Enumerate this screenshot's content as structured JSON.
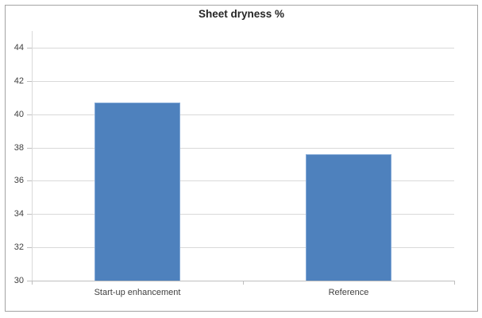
{
  "chart_data": {
    "type": "bar",
    "title": "Sheet dryness %",
    "categories": [
      "Start-up enhancement",
      "Reference"
    ],
    "values": [
      40.7,
      37.6
    ],
    "xlabel": "",
    "ylabel": "",
    "ylim": [
      30,
      45
    ],
    "yticks": [
      30,
      32,
      34,
      36,
      38,
      40,
      42,
      44
    ],
    "grid": true,
    "legend_position": "none",
    "colors": {
      "bar_fill": "#4e81bd",
      "bar_border": "#83a9d7",
      "gridline": "#d9d9d9",
      "axis_line": "#bfbfbf",
      "tick_label": "#3f3f3f",
      "title": "#262626",
      "frame_border": "#a3a3a3",
      "background": "#ffffff"
    }
  }
}
